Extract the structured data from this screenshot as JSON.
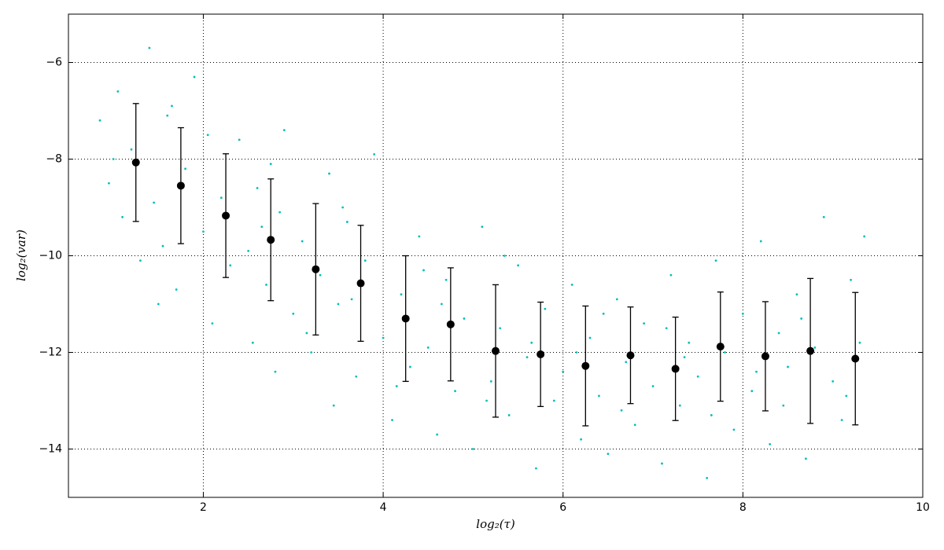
{
  "chart_data": {
    "type": "scatter",
    "xlabel": "log₂(τ)",
    "ylabel": "log₂(var)",
    "xlim": [
      0.5,
      10
    ],
    "ylim": [
      -15,
      -5
    ],
    "xticks": [
      2,
      4,
      6,
      8,
      10
    ],
    "yticks": [
      {
        "value": -14,
        "label": "−14"
      },
      {
        "value": -12,
        "label": "−12"
      },
      {
        "value": -10,
        "label": "−10"
      },
      {
        "value": -8,
        "label": "−8"
      },
      {
        "value": -6,
        "label": "−6"
      }
    ],
    "grid": true,
    "series": [
      {
        "color": "#00bfbf",
        "x": [
          0.85,
          0.95,
          1.05,
          1.1,
          1.2,
          1.3,
          1.4,
          1.45,
          1.55,
          1.6,
          1.7,
          1.8,
          1.9,
          2.0,
          2.1,
          2.2,
          2.3,
          2.4,
          2.5,
          2.55,
          2.6,
          2.7,
          2.8,
          2.85,
          2.9,
          3.0,
          3.1,
          3.2,
          3.3,
          3.4,
          3.45,
          3.5,
          3.6,
          3.7,
          3.8,
          3.9,
          4.0,
          4.1,
          4.2,
          4.3,
          4.4,
          4.5,
          4.6,
          4.7,
          4.8,
          4.9,
          5.0,
          5.1,
          5.2,
          5.3,
          5.4,
          5.5,
          5.6,
          5.7,
          5.8,
          5.9,
          6.0,
          6.1,
          6.2,
          6.3,
          6.4,
          6.5,
          6.6,
          6.7,
          6.8,
          6.9,
          7.0,
          7.1,
          7.2,
          7.3,
          7.4,
          7.5,
          7.6,
          7.7,
          7.8,
          7.9,
          8.0,
          8.1,
          8.2,
          8.3,
          8.4,
          8.5,
          8.6,
          8.7,
          8.8,
          8.9,
          9.0,
          9.1,
          9.2,
          9.3,
          1.0,
          1.5,
          2.05,
          2.65,
          3.15,
          3.65,
          4.15,
          4.65,
          5.15,
          5.65,
          6.15,
          6.65,
          7.15,
          7.65,
          8.15,
          8.65,
          9.15,
          9.35,
          1.65,
          2.75,
          3.55,
          4.45,
          5.35,
          6.45,
          7.35,
          8.45
        ],
        "values": [
          -7.2,
          -8.5,
          -6.6,
          -9.2,
          -7.8,
          -10.1,
          -5.7,
          -8.9,
          -9.8,
          -7.1,
          -10.7,
          -8.2,
          -6.3,
          -9.5,
          -11.4,
          -8.8,
          -10.2,
          -7.6,
          -9.9,
          -11.8,
          -8.6,
          -10.6,
          -12.4,
          -9.1,
          -7.4,
          -11.2,
          -9.7,
          -12.0,
          -10.4,
          -8.3,
          -13.1,
          -11.0,
          -9.3,
          -12.5,
          -10.1,
          -7.9,
          -11.7,
          -13.4,
          -10.8,
          -12.3,
          -9.6,
          -11.9,
          -13.7,
          -10.5,
          -12.8,
          -11.3,
          -14.0,
          -9.4,
          -12.6,
          -11.5,
          -13.3,
          -10.2,
          -12.1,
          -14.4,
          -11.1,
          -13.0,
          -12.4,
          -10.6,
          -13.8,
          -11.7,
          -12.9,
          -14.1,
          -10.9,
          -12.2,
          -13.5,
          -11.4,
          -12.7,
          -14.3,
          -10.4,
          -13.1,
          -11.8,
          -12.5,
          -14.6,
          -10.1,
          -12.0,
          -13.6,
          -11.2,
          -12.8,
          -9.7,
          -13.9,
          -11.6,
          -12.3,
          -10.8,
          -14.2,
          -11.9,
          -9.2,
          -12.6,
          -13.4,
          -10.5,
          -11.8,
          -8.0,
          -11.0,
          -7.5,
          -9.4,
          -11.6,
          -10.9,
          -12.7,
          -11.0,
          -13.0,
          -11.8,
          -12.0,
          -13.2,
          -11.5,
          -13.3,
          -12.4,
          -11.3,
          -12.9,
          -9.6,
          -6.9,
          -8.1,
          -9.0,
          -10.3,
          -10.0,
          -11.2,
          -12.1,
          -13.1
        ]
      },
      {
        "color": "#000000",
        "x": [
          1.25,
          1.75,
          2.25,
          2.75,
          3.25,
          3.75,
          4.25,
          4.75,
          5.25,
          5.75,
          6.25,
          6.75,
          7.25,
          7.75,
          8.25,
          8.75,
          9.25
        ],
        "values": [
          -8.07,
          -8.55,
          -9.17,
          -9.67,
          -10.28,
          -10.57,
          -11.3,
          -11.42,
          -11.97,
          -12.04,
          -12.28,
          -12.06,
          -12.34,
          -11.88,
          -12.08,
          -11.97,
          -12.13
        ],
        "errors": [
          1.22,
          1.2,
          1.28,
          1.26,
          1.36,
          1.2,
          1.3,
          1.17,
          1.37,
          1.08,
          1.24,
          1.0,
          1.07,
          1.13,
          1.13,
          1.5,
          1.37
        ]
      }
    ]
  }
}
